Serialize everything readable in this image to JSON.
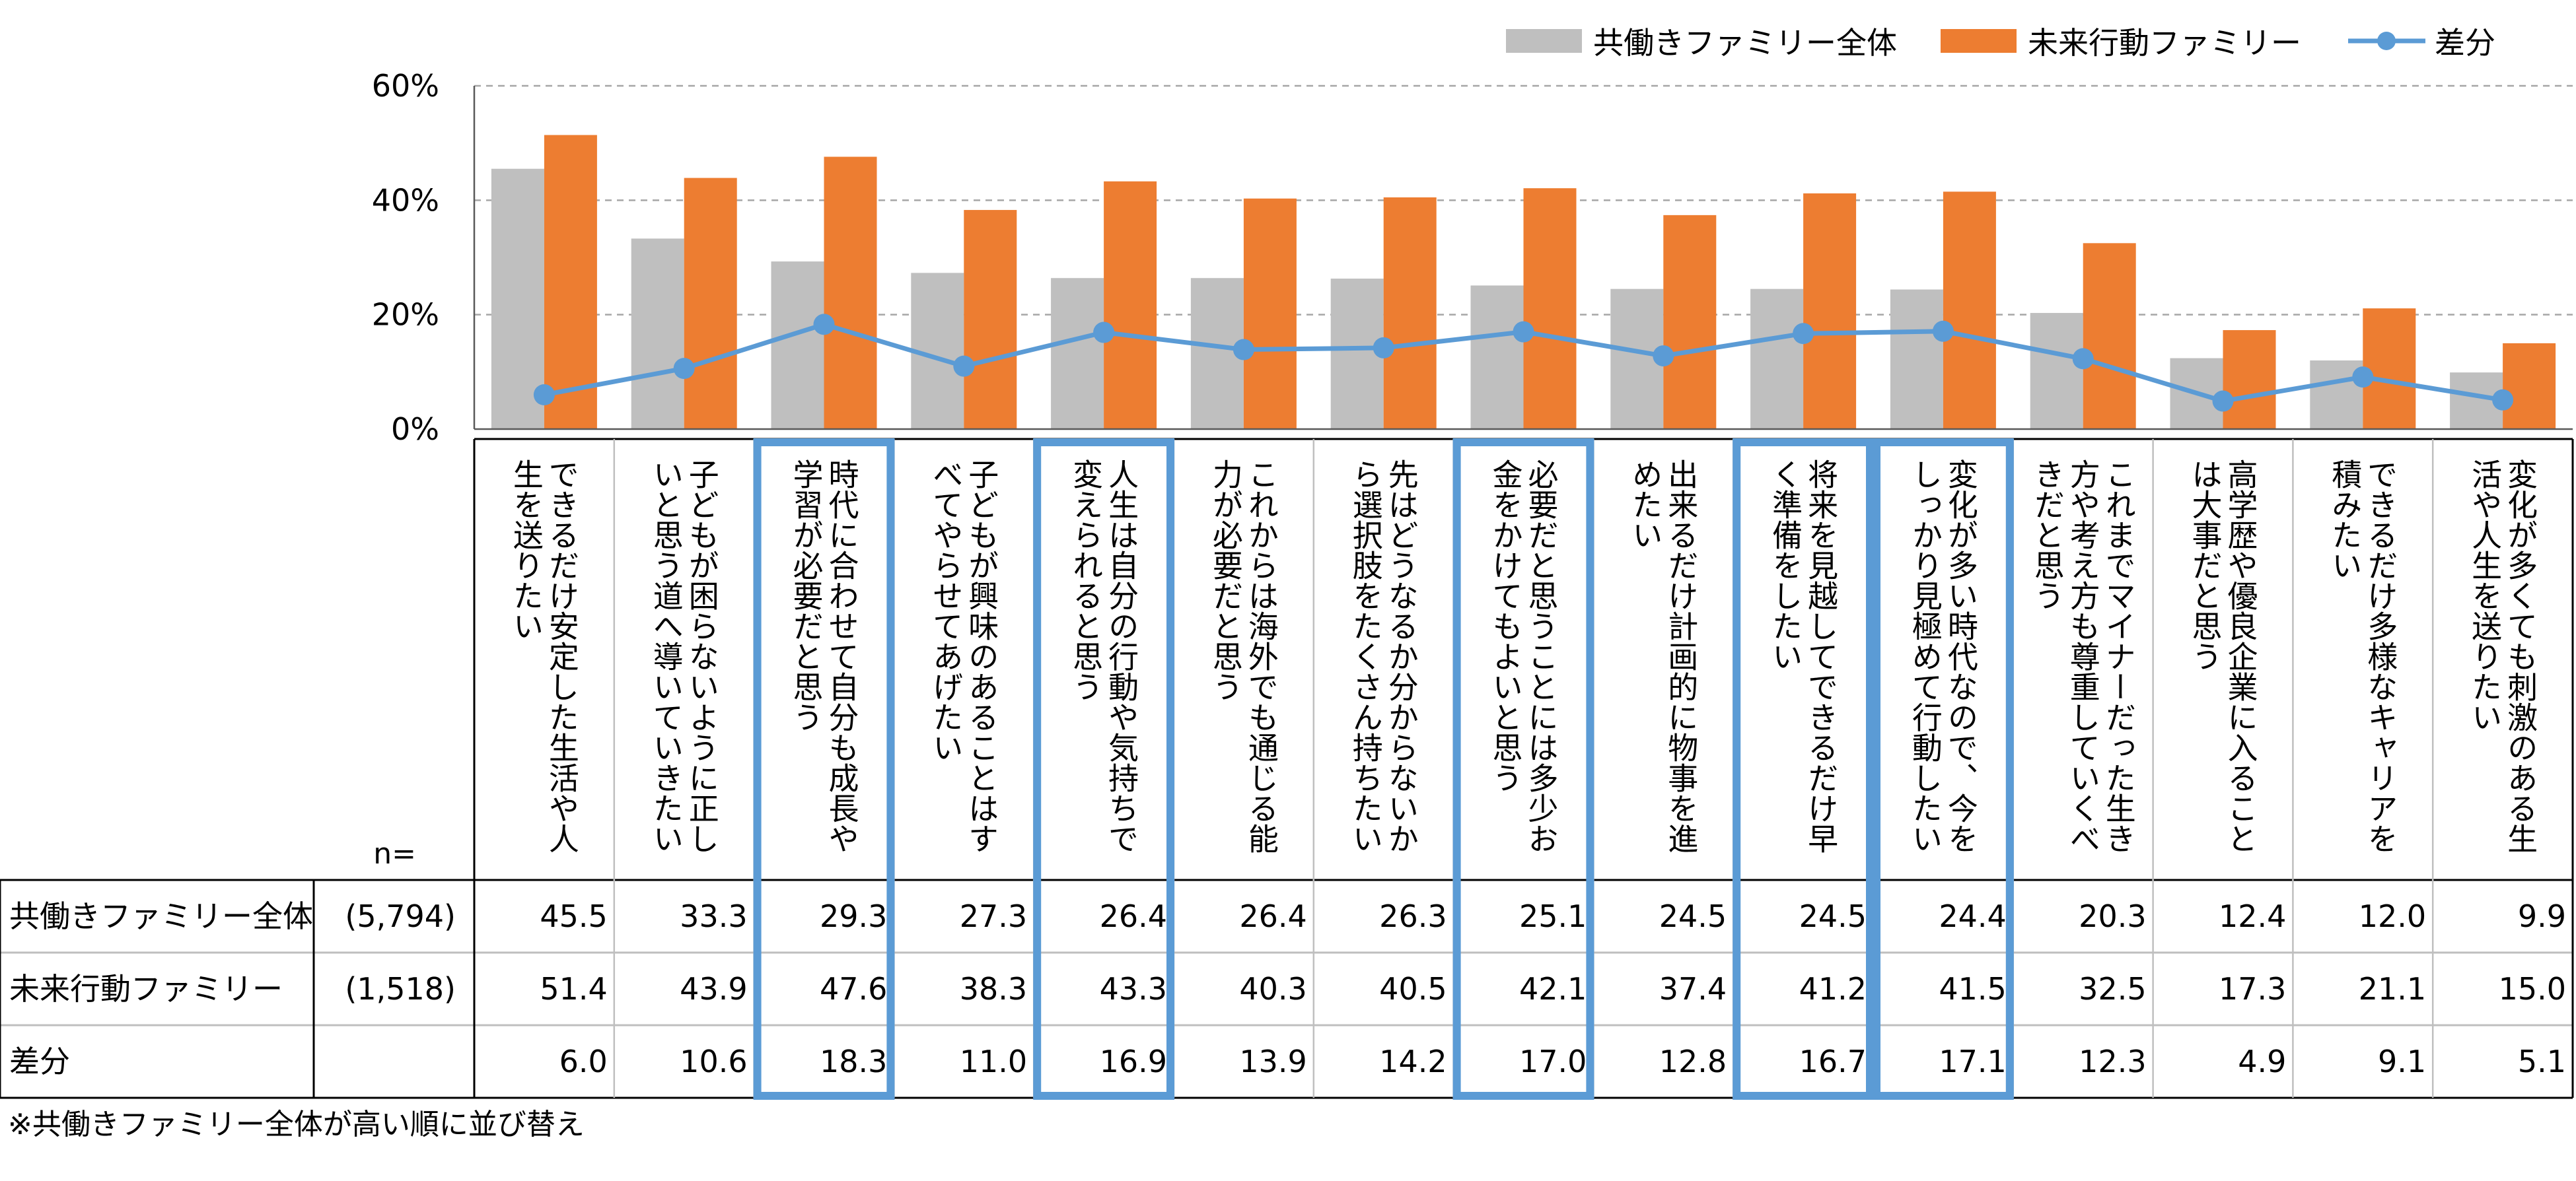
{
  "chart_data": {
    "type": "bar",
    "title": "",
    "xlabel": "",
    "ylabel": "",
    "ylim": [
      0,
      60
    ],
    "y_ticks": [
      "0%",
      "20%",
      "40%",
      "60%"
    ],
    "y_tick_values": [
      0,
      20,
      40,
      60
    ],
    "grid": true,
    "legend_position": "top-right",
    "colors": {
      "series_all": "#BFBFBF",
      "series_future": "#ED7D31",
      "series_diff": "#5B9BD5",
      "highlight_box": "#5B9BD5",
      "grid": "#A6A6A6"
    },
    "categories": [
      "できるだけ安定した生活や人生を送りたい",
      "子どもが困らないように正しいと思う道へ導いていきたい",
      "時代に合わせて自分も成長や学習が必要だと思う",
      "子どもが興味のあることはすべてやらせてあげたい",
      "人生は自分の行動や気持ちで変えられると思う",
      "これからは海外でも通じる能力が必要だと思う",
      "先はどうなるか分からないから選択肢をたくさん持ちたい",
      "必要だと思うことには多少お金をかけてもよいと思う",
      "出来るだけ計画的に物事を進めたい",
      "将来を見越してできるだけ早く準備をしたい",
      "変化が多い時代なので、今をしっかり見極めて行動したい",
      "これまでマイナーだった生き方や考え方も尊重していくべきだと思う",
      "高学歴や優良企業に入ることは大事だと思う",
      "できるだけ多様なキャリアを積みたい",
      "変化が多くても刺激のある生活や人生を送りたい"
    ],
    "category_lines": [
      [
        "できるだけ安定した生活や人",
        "生を送りたい"
      ],
      [
        "子どもが困らないように正し",
        "いと思う道へ導いていきたい"
      ],
      [
        "時代に合わせて自分も成長や",
        "学習が必要だと思う"
      ],
      [
        "子どもが興味のあることはす",
        "べてやらせてあげたい"
      ],
      [
        "人生は自分の行動や気持ちで",
        "変えられると思う"
      ],
      [
        "これからは海外でも通じる能",
        "力が必要だと思う"
      ],
      [
        "先はどうなるか分からないか",
        "ら選択肢をたくさん持ちたい"
      ],
      [
        "必要だと思うことには多少お",
        "金をかけてもよいと思う"
      ],
      [
        "出来るだけ計画的に物事を進",
        "めたい"
      ],
      [
        "将来を見越してできるだけ早",
        "く準備をしたい"
      ],
      [
        "変化が多い時代なので、今を",
        "しっかり見極めて行動したい"
      ],
      [
        "これまでマイナーだった生き",
        "方や考え方も尊重していくべ",
        "きだと思う"
      ],
      [
        "高学歴や優良企業に入ること",
        "は大事だと思う"
      ],
      [
        "できるだけ多様なキャリアを",
        "積みたい"
      ],
      [
        "変化が多くても刺激のある生",
        "活や人生を送りたい"
      ]
    ],
    "highlighted_indices": [
      2,
      4,
      7,
      9,
      10
    ],
    "series": [
      {
        "name": "共働きファミリー全体",
        "n": "(5,794)",
        "values": [
          45.5,
          33.3,
          29.3,
          27.3,
          26.4,
          26.4,
          26.3,
          25.1,
          24.5,
          24.5,
          24.4,
          20.3,
          12.4,
          12.0,
          9.9
        ]
      },
      {
        "name": "未来行動ファミリー",
        "n": "(1,518)",
        "values": [
          51.4,
          43.9,
          47.6,
          38.3,
          43.3,
          40.3,
          40.5,
          42.1,
          37.4,
          41.2,
          41.5,
          32.5,
          17.3,
          21.1,
          15.0
        ]
      },
      {
        "name": "差分",
        "values": [
          6.0,
          10.6,
          18.3,
          11.0,
          16.9,
          13.9,
          14.2,
          17.0,
          12.8,
          16.7,
          17.1,
          12.3,
          4.9,
          9.1,
          5.1
        ]
      }
    ],
    "table": {
      "n_label": "n=",
      "rows": [
        {
          "label": "共働きファミリー全体",
          "n": "(5,794)",
          "values": [
            "45.5",
            "33.3",
            "29.3",
            "27.3",
            "26.4",
            "26.4",
            "26.3",
            "25.1",
            "24.5",
            "24.5",
            "24.4",
            "20.3",
            "12.4",
            "12.0",
            "9.9"
          ]
        },
        {
          "label": "未来行動ファミリー",
          "n": "(1,518)",
          "values": [
            "51.4",
            "43.9",
            "47.6",
            "38.3",
            "43.3",
            "40.3",
            "40.5",
            "42.1",
            "37.4",
            "41.2",
            "41.5",
            "32.5",
            "17.3",
            "21.1",
            "15.0"
          ]
        },
        {
          "label": "差分",
          "n": "",
          "values": [
            "6.0",
            "10.6",
            "18.3",
            "11.0",
            "16.9",
            "13.9",
            "14.2",
            "17.0",
            "12.8",
            "16.7",
            "17.1",
            "12.3",
            "4.9",
            "9.1",
            "5.1"
          ]
        }
      ]
    },
    "footnote": "※共働きファミリー全体が高い順に並び替え"
  }
}
